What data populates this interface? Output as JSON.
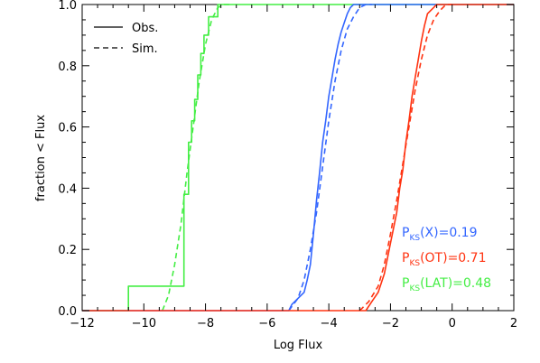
{
  "chart_data": {
    "type": "line",
    "title": "",
    "xlabel": "Log Flux",
    "ylabel": "fraction < Flux",
    "xlim": [
      -12,
      2
    ],
    "ylim": [
      0.0,
      1.0
    ],
    "x_ticks": [
      "-12",
      "-10",
      "-8",
      "-6",
      "-4",
      "-2",
      "0",
      "2"
    ],
    "y_ticks": [
      "0.0",
      "0.2",
      "0.4",
      "0.6",
      "0.8",
      "1.0"
    ],
    "grid": false,
    "legend": {
      "placement": "top-left",
      "entries": [
        {
          "label": "Obs.",
          "style": "solid"
        },
        {
          "label": "Sim.",
          "style": "dashed"
        }
      ]
    },
    "annotations": [
      {
        "prefix": "P",
        "sub": "KS",
        "suffix": "(X)=0.19",
        "color": "#3366ff"
      },
      {
        "prefix": "P",
        "sub": "KS",
        "suffix": "(OT)=0.71",
        "color": "#ff3311"
      },
      {
        "prefix": "P",
        "sub": "KS",
        "suffix": "(LAT)=0.48",
        "color": "#44ee44"
      }
    ],
    "series": [
      {
        "group": "LAT",
        "style": "solid",
        "color": "#44ee44",
        "x": [
          -12.0,
          -10.5,
          -10.5,
          -8.7,
          -8.7,
          -8.55,
          -8.55,
          -8.45,
          -8.45,
          -8.35,
          -8.35,
          -8.25,
          -8.25,
          -8.15,
          -8.15,
          -8.05,
          -8.05,
          -7.9,
          -7.9,
          -7.6,
          -7.6,
          -7.3,
          -7.3,
          2.0
        ],
        "y": [
          0.0,
          0.0,
          0.08,
          0.08,
          0.38,
          0.38,
          0.55,
          0.55,
          0.62,
          0.62,
          0.69,
          0.69,
          0.77,
          0.77,
          0.84,
          0.84,
          0.9,
          0.9,
          0.96,
          0.96,
          1.0,
          1.0,
          1.0,
          1.0
        ]
      },
      {
        "group": "LAT",
        "style": "dashed",
        "color": "#44ee44",
        "x": [
          -9.4,
          -9.2,
          -9.0,
          -8.8,
          -8.6,
          -8.4,
          -8.2,
          -8.0,
          -7.8,
          -7.6,
          -7.4,
          -7.2
        ],
        "y": [
          0.0,
          0.05,
          0.15,
          0.28,
          0.45,
          0.6,
          0.75,
          0.87,
          0.95,
          0.99,
          1.0,
          1.0
        ]
      },
      {
        "group": "X",
        "style": "solid",
        "color": "#3366ff",
        "x": [
          -12.0,
          -5.3,
          -5.2,
          -5.0,
          -4.8,
          -4.7,
          -4.6,
          -4.5,
          -4.4,
          -4.3,
          -4.2,
          -4.1,
          -4.0,
          -3.9,
          -3.8,
          -3.7,
          -3.6,
          -3.5,
          -3.4,
          -3.3,
          -3.2,
          -3.0,
          -2.9,
          2.0
        ],
        "y": [
          0.0,
          0.0,
          0.02,
          0.04,
          0.06,
          0.1,
          0.15,
          0.25,
          0.36,
          0.45,
          0.55,
          0.62,
          0.7,
          0.76,
          0.82,
          0.87,
          0.91,
          0.94,
          0.97,
          0.99,
          1.0,
          1.0,
          1.0,
          1.0
        ]
      },
      {
        "group": "X",
        "style": "dashed",
        "color": "#3366ff",
        "x": [
          -5.3,
          -5.0,
          -4.8,
          -4.6,
          -4.4,
          -4.2,
          -4.0,
          -3.8,
          -3.6,
          -3.4,
          -3.2,
          -3.0,
          -2.8,
          -2.6
        ],
        "y": [
          0.0,
          0.04,
          0.1,
          0.2,
          0.32,
          0.47,
          0.62,
          0.75,
          0.85,
          0.92,
          0.96,
          0.99,
          1.0,
          1.0
        ]
      },
      {
        "group": "OT",
        "style": "solid",
        "color": "#ff3311",
        "x": [
          -12.0,
          -2.8,
          -2.6,
          -2.4,
          -2.2,
          -2.0,
          -1.8,
          -1.7,
          -1.6,
          -1.5,
          -1.4,
          -1.3,
          -1.2,
          -1.1,
          -1.0,
          -0.9,
          -0.8,
          -0.6,
          -0.5,
          -0.4,
          -0.2,
          2.0
        ],
        "y": [
          0.0,
          0.0,
          0.03,
          0.06,
          0.12,
          0.22,
          0.32,
          0.4,
          0.46,
          0.55,
          0.62,
          0.7,
          0.76,
          0.82,
          0.88,
          0.93,
          0.97,
          0.99,
          1.0,
          1.0,
          1.0,
          1.0
        ]
      },
      {
        "group": "OT",
        "style": "dashed",
        "color": "#ff3311",
        "x": [
          -3.0,
          -2.7,
          -2.4,
          -2.2,
          -2.0,
          -1.8,
          -1.6,
          -1.4,
          -1.2,
          -1.0,
          -0.8,
          -0.6,
          -0.4,
          -0.2,
          0.0
        ],
        "y": [
          0.0,
          0.03,
          0.08,
          0.15,
          0.25,
          0.36,
          0.48,
          0.6,
          0.72,
          0.82,
          0.9,
          0.95,
          0.98,
          1.0,
          1.0
        ]
      }
    ]
  }
}
